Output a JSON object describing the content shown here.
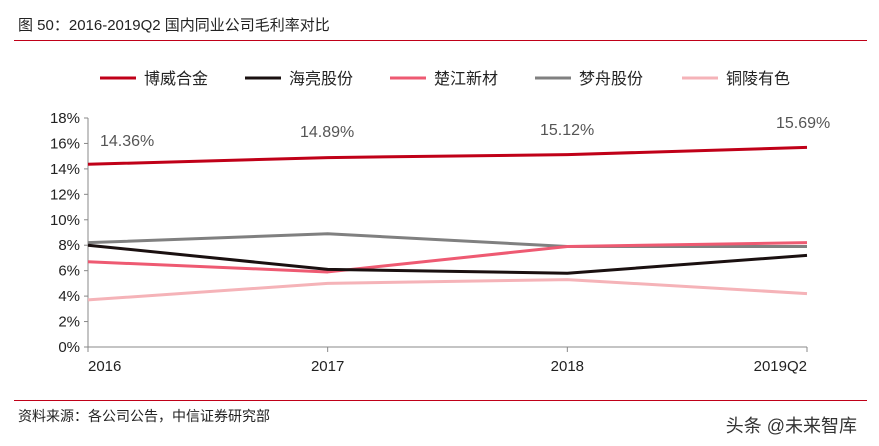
{
  "title": "图 50：2016-2019Q2 国内同业公司毛利率对比",
  "source": "资料来源：各公司公告，中信证券研究部",
  "watermark": "头条 @未来智库",
  "chart_data": {
    "type": "line",
    "title": "",
    "categories": [
      "2016",
      "2017",
      "2018",
      "2019Q2"
    ],
    "ylim": [
      0,
      18
    ],
    "yticks": [
      "0%",
      "2%",
      "4%",
      "6%",
      "8%",
      "10%",
      "12%",
      "14%",
      "16%",
      "18%"
    ],
    "ytick_values": [
      0,
      2,
      4,
      6,
      8,
      10,
      12,
      14,
      16,
      18
    ],
    "grid": false,
    "legend_position": "top",
    "series": [
      {
        "name": "博威合金",
        "color": "#c00018",
        "values": [
          14.36,
          14.89,
          15.12,
          15.69
        ],
        "labels": [
          "14.36%",
          "14.89%",
          "15.12%",
          "15.69%"
        ]
      },
      {
        "name": "海亮股份",
        "color": "#1a1010",
        "values": [
          8.0,
          6.1,
          5.8,
          7.2
        ]
      },
      {
        "name": "楚江新材",
        "color": "#ee5a72",
        "values": [
          6.7,
          5.9,
          7.9,
          8.2
        ]
      },
      {
        "name": "梦舟股份",
        "color": "#808080",
        "values": [
          8.2,
          8.9,
          7.9,
          7.9
        ]
      },
      {
        "name": "铜陵有色",
        "color": "#f5b3b8",
        "values": [
          3.7,
          5.0,
          5.3,
          4.2
        ]
      }
    ]
  }
}
